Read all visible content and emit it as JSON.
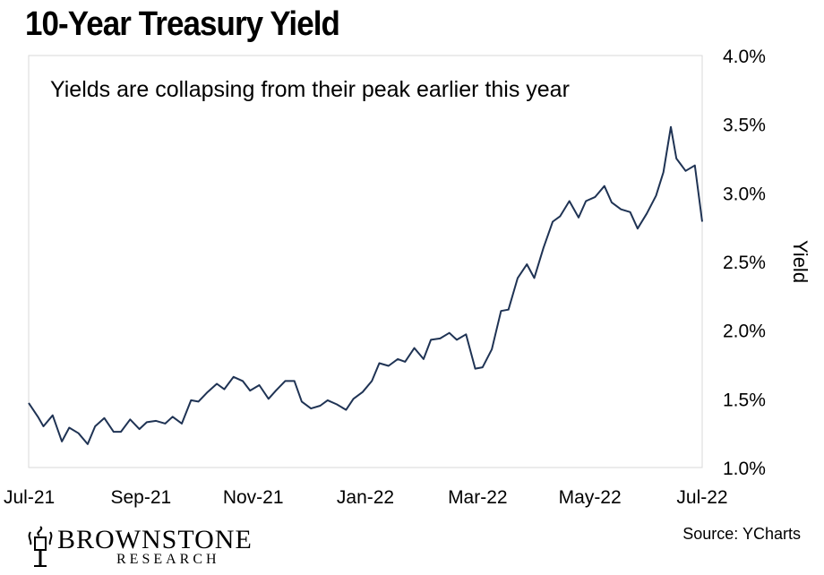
{
  "header": {
    "title": "10-Year Treasury Yield"
  },
  "footer": {
    "source": "Source: YCharts",
    "logo_name": "BROWNSTONE",
    "logo_sub": "RESEARCH"
  },
  "colors": {
    "line": "#1f3354",
    "frame": "#d9d9d9"
  },
  "chart_data": {
    "type": "line",
    "title": "10-Year Treasury Yield",
    "annotation": "Yields are collapsing from their peak earlier this year",
    "ylabel": "Yield",
    "xlabel": "",
    "ylim": [
      1.0,
      4.0
    ],
    "yticks": [
      "1.0%",
      "1.5%",
      "2.0%",
      "2.5%",
      "3.0%",
      "3.5%",
      "4.0%"
    ],
    "xticks": [
      "Jul-21",
      "Sep-21",
      "Nov-21",
      "Jan-22",
      "Mar-22",
      "May-22",
      "Jul-22"
    ],
    "xlim": [
      "2021-07-01",
      "2022-07-01"
    ],
    "grid": false,
    "series": [
      {
        "x": [
          "2021-07-01",
          "2021-07-06",
          "2021-07-09",
          "2021-07-14",
          "2021-07-19",
          "2021-07-23",
          "2021-07-28",
          "2021-08-02",
          "2021-08-06",
          "2021-08-11",
          "2021-08-16",
          "2021-08-20",
          "2021-08-25",
          "2021-08-30",
          "2021-09-03",
          "2021-09-08",
          "2021-09-13",
          "2021-09-17",
          "2021-09-22",
          "2021-09-27",
          "2021-10-01",
          "2021-10-06",
          "2021-10-11",
          "2021-10-15",
          "2021-10-20",
          "2021-10-25",
          "2021-10-29",
          "2021-11-03",
          "2021-11-08",
          "2021-11-12",
          "2021-11-17",
          "2021-11-22",
          "2021-11-26",
          "2021-12-01",
          "2021-12-06",
          "2021-12-10",
          "2021-12-15",
          "2021-12-20",
          "2021-12-24",
          "2021-12-29",
          "2022-01-03",
          "2022-01-07",
          "2022-01-12",
          "2022-01-17",
          "2022-01-21",
          "2022-01-26",
          "2022-01-31",
          "2022-02-04",
          "2022-02-09",
          "2022-02-14",
          "2022-02-18",
          "2022-02-23",
          "2022-02-28",
          "2022-03-04",
          "2022-03-09",
          "2022-03-14",
          "2022-03-18",
          "2022-03-23",
          "2022-03-28",
          "2022-04-01",
          "2022-04-06",
          "2022-04-11",
          "2022-04-15",
          "2022-04-20",
          "2022-04-25",
          "2022-04-29",
          "2022-05-04",
          "2022-05-09",
          "2022-05-13",
          "2022-05-18",
          "2022-05-23",
          "2022-05-27",
          "2022-06-01",
          "2022-06-06",
          "2022-06-10",
          "2022-06-14",
          "2022-06-17",
          "2022-06-22",
          "2022-06-27",
          "2022-07-01"
        ],
        "values": [
          1.47,
          1.37,
          1.3,
          1.38,
          1.19,
          1.29,
          1.25,
          1.17,
          1.3,
          1.36,
          1.26,
          1.26,
          1.35,
          1.28,
          1.33,
          1.34,
          1.32,
          1.37,
          1.32,
          1.49,
          1.48,
          1.55,
          1.61,
          1.57,
          1.66,
          1.63,
          1.56,
          1.6,
          1.5,
          1.56,
          1.63,
          1.63,
          1.48,
          1.43,
          1.45,
          1.49,
          1.46,
          1.42,
          1.5,
          1.55,
          1.63,
          1.76,
          1.74,
          1.79,
          1.77,
          1.87,
          1.79,
          1.93,
          1.94,
          1.98,
          1.93,
          1.97,
          1.72,
          1.73,
          1.86,
          2.14,
          2.15,
          2.38,
          2.48,
          2.38,
          2.6,
          2.79,
          2.83,
          2.94,
          2.82,
          2.94,
          2.97,
          3.05,
          2.93,
          2.88,
          2.86,
          2.74,
          2.85,
          2.98,
          3.15,
          3.48,
          3.25,
          3.16,
          3.2,
          2.79
        ]
      }
    ]
  }
}
